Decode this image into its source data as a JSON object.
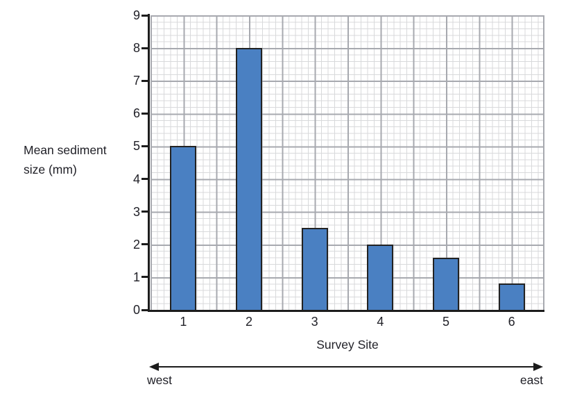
{
  "chart_data": {
    "type": "bar",
    "title": "",
    "categories": [
      "1",
      "2",
      "3",
      "4",
      "5",
      "6"
    ],
    "values": [
      5,
      8,
      2.5,
      2,
      1.6,
      0.8
    ],
    "xlabel": "Survey Site",
    "ylabel": "Mean sediment\nsize (mm)",
    "ylim": [
      0,
      9
    ],
    "y_ticks": [
      0,
      1,
      2,
      3,
      4,
      5,
      6,
      7,
      8,
      9
    ],
    "grid": {
      "style": "graph-paper",
      "minor_step_units": 0.2,
      "major_step_units": 1,
      "minor_color": "#d8d9db",
      "major_color": "#a7a9af"
    },
    "legend": "none",
    "bar_color": "#4a80c2",
    "bar_border_color": "#222222",
    "axis_color": "#1c1c1c",
    "text_color": "#1f1f26",
    "direction_axis": {
      "left_label": "west",
      "right_label": "east"
    }
  }
}
